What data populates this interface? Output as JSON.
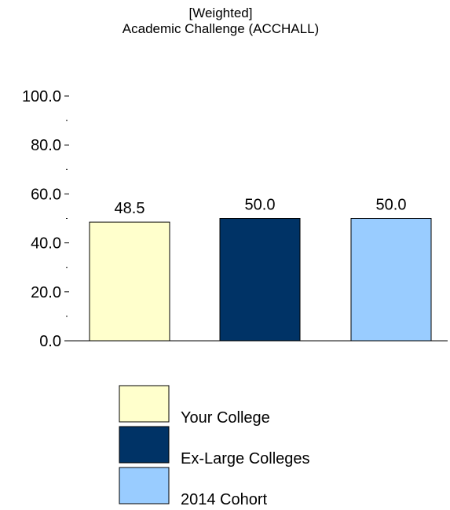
{
  "chart_data": {
    "type": "bar",
    "title_line1": "[Weighted]",
    "title_line2": "Academic Challenge (ACCHALL)",
    "xlabel": "",
    "ylabel": "",
    "ylim": [
      0,
      100
    ],
    "yticks": [
      "0.0",
      "20.0",
      "40.0",
      "60.0",
      "80.0",
      "100.0"
    ],
    "grid": false,
    "legend_position": "bottom",
    "categories": [
      "Your College",
      "Ex-Large Colleges",
      "2014 Cohort"
    ],
    "values": [
      48.5,
      50.0,
      50.0
    ],
    "value_labels": [
      "48.5",
      "50.0",
      "50.0"
    ],
    "colors": [
      "#ffffcc",
      "#003366",
      "#99ccff"
    ]
  }
}
